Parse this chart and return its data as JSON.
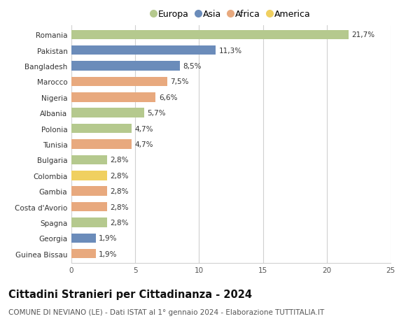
{
  "categories": [
    "Romania",
    "Pakistan",
    "Bangladesh",
    "Marocco",
    "Nigeria",
    "Albania",
    "Polonia",
    "Tunisia",
    "Bulgaria",
    "Colombia",
    "Gambia",
    "Costa d'Avorio",
    "Spagna",
    "Georgia",
    "Guinea Bissau"
  ],
  "values": [
    21.7,
    11.3,
    8.5,
    7.5,
    6.6,
    5.7,
    4.7,
    4.7,
    2.8,
    2.8,
    2.8,
    2.8,
    2.8,
    1.9,
    1.9
  ],
  "labels": [
    "21,7%",
    "11,3%",
    "8,5%",
    "7,5%",
    "6,6%",
    "5,7%",
    "4,7%",
    "4,7%",
    "2,8%",
    "2,8%",
    "2,8%",
    "2,8%",
    "2,8%",
    "1,9%",
    "1,9%"
  ],
  "continents": [
    "Europa",
    "Asia",
    "Asia",
    "Africa",
    "Africa",
    "Europa",
    "Europa",
    "Africa",
    "Europa",
    "America",
    "Africa",
    "Africa",
    "Europa",
    "Asia",
    "Africa"
  ],
  "colors": {
    "Europa": "#b5c98e",
    "Asia": "#6b8cba",
    "Africa": "#e8a97e",
    "America": "#f0d060"
  },
  "legend_order": [
    "Europa",
    "Asia",
    "Africa",
    "America"
  ],
  "title": "Cittadini Stranieri per Cittadinanza - 2024",
  "subtitle": "COMUNE DI NEVIANO (LE) - Dati ISTAT al 1° gennaio 2024 - Elaborazione TUTTITALIA.IT",
  "xlim": [
    0,
    25
  ],
  "xticks": [
    0,
    5,
    10,
    15,
    20,
    25
  ],
  "background_color": "#ffffff",
  "grid_color": "#d0d0d0",
  "bar_height": 0.6,
  "title_fontsize": 10.5,
  "subtitle_fontsize": 7.5,
  "label_fontsize": 7.5,
  "tick_fontsize": 7.5,
  "legend_fontsize": 9
}
